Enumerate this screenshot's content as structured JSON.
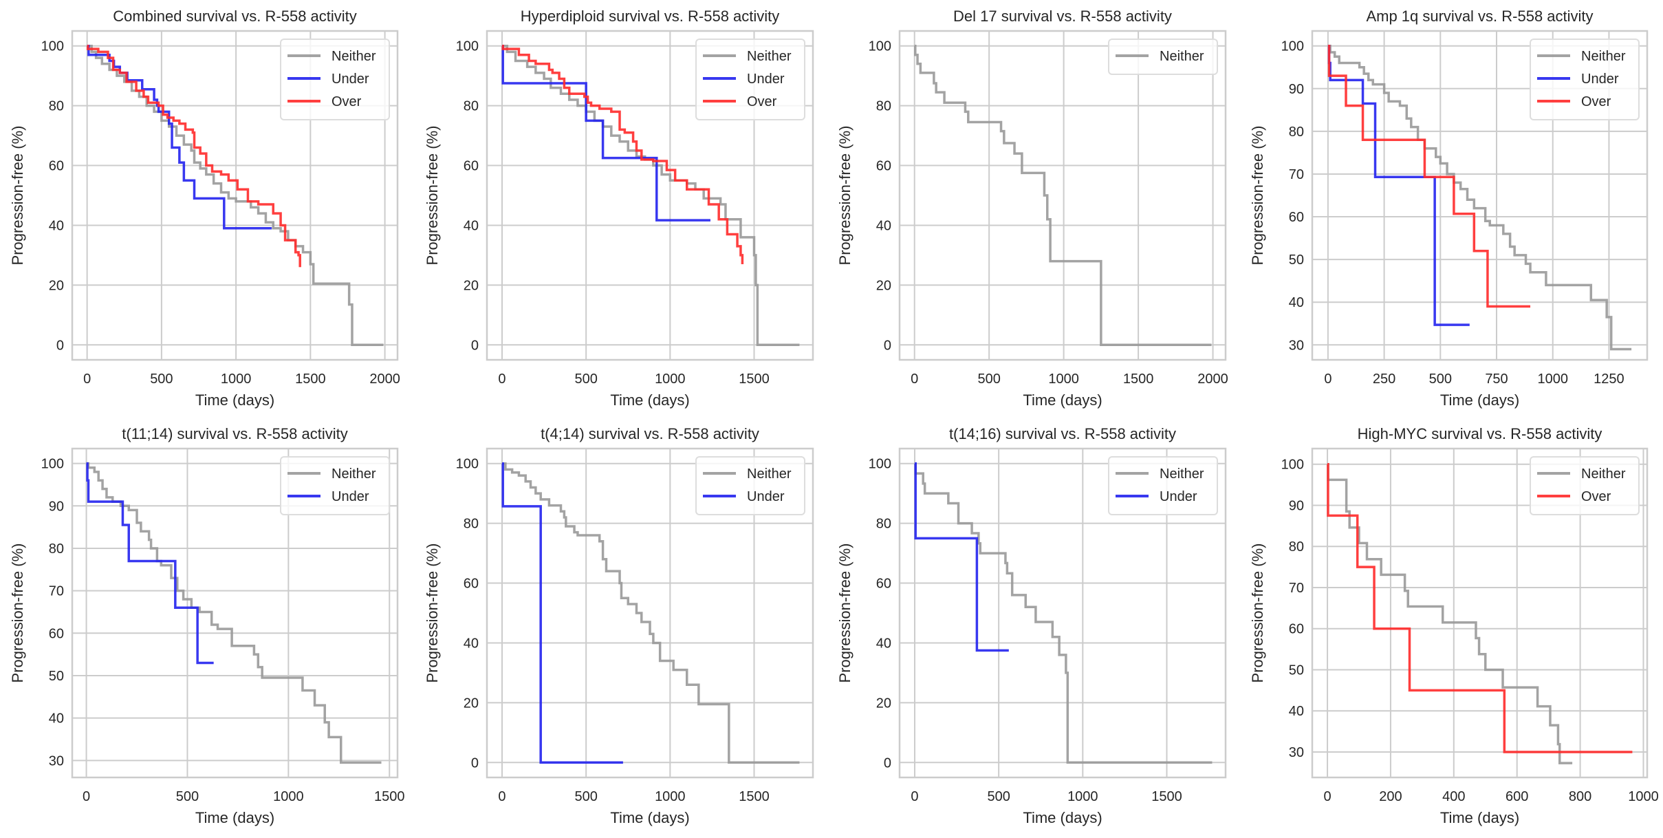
{
  "figure": {
    "suptitle": ""
  },
  "colors": {
    "Neither": "#999999",
    "Under": "#2222ee",
    "Over": "#ff2a2a",
    "grid": "#cccccc",
    "frame": "#cccccc"
  },
  "chart_data": [
    {
      "type": "line",
      "step": true,
      "title": "Combined survival vs. R-558 activity",
      "xlabel": "Time (days)",
      "ylabel": "Progression-free (%)",
      "xlim": [
        -100,
        2085
      ],
      "ylim": [
        -5,
        105
      ],
      "xticks": [
        0,
        500,
        1000,
        1500,
        2000
      ],
      "yticks": [
        0,
        20,
        40,
        60,
        80,
        100
      ],
      "grid": true,
      "legend": "top-right",
      "series": [
        {
          "name": "Neither",
          "x": [
            0,
            30,
            60,
            100,
            150,
            200,
            250,
            300,
            350,
            400,
            450,
            500,
            550,
            600,
            650,
            700,
            720,
            760,
            800,
            850,
            900,
            950,
            1000,
            1100,
            1150,
            1200,
            1250,
            1300,
            1350,
            1400,
            1450,
            1500,
            1520,
            1760,
            1780,
            1990
          ],
          "y": [
            100,
            98,
            96,
            94,
            92,
            90,
            88,
            85,
            83,
            80,
            78,
            75,
            73,
            70,
            67,
            65,
            61,
            59,
            57,
            54,
            51,
            49,
            48,
            46,
            44,
            41,
            39,
            38,
            35,
            33,
            31,
            27,
            20.5,
            13.5,
            0,
            0
          ]
        },
        {
          "name": "Under",
          "x": [
            0,
            10,
            150,
            180,
            220,
            270,
            370,
            450,
            470,
            480,
            550,
            570,
            620,
            650,
            720,
            800,
            920,
            1240
          ],
          "y": [
            100,
            97,
            95,
            93,
            91,
            88.5,
            85.5,
            82,
            80,
            78,
            74,
            66,
            61,
            55,
            49,
            49,
            39,
            39
          ]
        },
        {
          "name": "Over",
          "x": [
            0,
            5,
            75,
            140,
            175,
            220,
            265,
            330,
            380,
            410,
            480,
            510,
            540,
            580,
            620,
            660,
            710,
            720,
            760,
            800,
            840,
            900,
            950,
            1010,
            1080,
            1150,
            1250,
            1300,
            1330,
            1400,
            1420,
            1430
          ],
          "y": [
            100,
            99,
            98,
            96,
            92,
            91,
            88,
            85,
            83,
            81,
            80,
            77,
            76,
            75,
            74,
            72,
            71,
            66,
            64,
            60,
            58,
            57,
            55,
            52,
            48,
            47,
            44,
            40,
            35,
            31,
            30,
            26
          ]
        }
      ]
    },
    {
      "type": "line",
      "step": true,
      "title": "Hyperdiploid survival vs. R-558 activity",
      "xlabel": "Time (days)",
      "ylabel": "Progression-free (%)",
      "xlim": [
        -90,
        1850
      ],
      "ylim": [
        -5,
        105
      ],
      "xticks": [
        0,
        500,
        1000,
        1500
      ],
      "yticks": [
        0,
        20,
        40,
        60,
        80,
        100
      ],
      "grid": true,
      "legend": "top-right",
      "series": [
        {
          "name": "Neither",
          "x": [
            0,
            30,
            80,
            150,
            200,
            250,
            290,
            350,
            400,
            450,
            500,
            550,
            600,
            650,
            700,
            750,
            800,
            850,
            900,
            950,
            1000,
            1100,
            1150,
            1200,
            1300,
            1330,
            1420,
            1500,
            1510,
            1520,
            1770
          ],
          "y": [
            100,
            98,
            95,
            93,
            91,
            89,
            86,
            84,
            82,
            80,
            78,
            75,
            73,
            70,
            68,
            65,
            63,
            62,
            60,
            57,
            55,
            54,
            52,
            49,
            47,
            42,
            36,
            30,
            20,
            0,
            0
          ]
        },
        {
          "name": "Under",
          "x": [
            0,
            5,
            500,
            600,
            920,
            1240
          ],
          "y": [
            100,
            87.5,
            75,
            62.5,
            41.7,
            41.7
          ]
        },
        {
          "name": "Over",
          "x": [
            0,
            5,
            100,
            160,
            200,
            280,
            300,
            340,
            370,
            400,
            490,
            510,
            530,
            580,
            650,
            700,
            730,
            780,
            800,
            830,
            900,
            980,
            1030,
            1100,
            1230,
            1290,
            1340,
            1400,
            1420,
            1430
          ],
          "y": [
            100,
            99,
            97,
            95,
            94,
            92,
            91,
            89,
            86,
            84,
            83,
            81,
            80,
            79,
            78,
            72,
            71,
            68,
            65,
            62,
            61.5,
            58.5,
            55,
            52,
            47,
            42,
            37,
            33,
            30,
            27
          ]
        }
      ]
    },
    {
      "type": "line",
      "step": true,
      "title": "Del 17 survival vs. R-558 activity",
      "xlabel": "Time (days)",
      "ylabel": "Progression-free (%)",
      "xlim": [
        -100,
        2085
      ],
      "ylim": [
        -5,
        105
      ],
      "xticks": [
        0,
        500,
        1000,
        1500,
        2000
      ],
      "yticks": [
        0,
        20,
        40,
        60,
        80,
        100
      ],
      "grid": true,
      "legend": "top-right",
      "series": [
        {
          "name": "Neither",
          "x": [
            0,
            5,
            20,
            40,
            130,
            145,
            200,
            340,
            360,
            580,
            600,
            670,
            720,
            870,
            890,
            910,
            1250,
            1990
          ],
          "y": [
            100,
            97,
            94,
            91,
            87.5,
            84.5,
            81,
            78,
            74.5,
            71.5,
            67.5,
            64,
            57.5,
            50,
            42,
            28,
            0,
            0
          ]
        }
      ]
    },
    {
      "type": "line",
      "step": true,
      "title": "Amp 1q survival vs. R-558 activity",
      "xlabel": "Time (days)",
      "ylabel": "Progression-free (%)",
      "xlim": [
        -70,
        1420
      ],
      "ylim": [
        26.5,
        103.5
      ],
      "xticks": [
        0,
        250,
        500,
        750,
        1000,
        1250
      ],
      "yticks": [
        30,
        40,
        50,
        60,
        70,
        80,
        90,
        100
      ],
      "grid": true,
      "legend": "top-right",
      "series": [
        {
          "name": "Neither",
          "x": [
            0,
            10,
            30,
            50,
            140,
            160,
            180,
            200,
            250,
            270,
            320,
            350,
            370,
            400,
            430,
            480,
            500,
            530,
            560,
            590,
            620,
            650,
            700,
            720,
            780,
            810,
            830,
            880,
            900,
            970,
            1170,
            1240,
            1260,
            1350
          ],
          "y": [
            100,
            98.5,
            97.5,
            96,
            95,
            93.5,
            92,
            91,
            89,
            87,
            86,
            83,
            81,
            78,
            76,
            74,
            72.5,
            70,
            68,
            66.5,
            64,
            62,
            59,
            58,
            56,
            53,
            51,
            49,
            47,
            44,
            40.5,
            36.5,
            29,
            29
          ]
        },
        {
          "name": "Under",
          "x": [
            0,
            5,
            10,
            155,
            210,
            475,
            630
          ],
          "y": [
            100,
            96,
            92,
            86.5,
            69.3,
            34.7,
            34.7
          ]
        },
        {
          "name": "Over",
          "x": [
            0,
            5,
            80,
            155,
            430,
            560,
            650,
            710,
            900
          ],
          "y": [
            100,
            93,
            86,
            78,
            69.3,
            60.7,
            52,
            39,
            39
          ]
        }
      ]
    },
    {
      "type": "line",
      "step": true,
      "title": "t(11;14) survival vs. R-558 activity",
      "xlabel": "Time (days)",
      "ylabel": "Progression-free (%)",
      "xlim": [
        -70,
        1540
      ],
      "ylim": [
        26,
        103.5
      ],
      "xticks": [
        0,
        500,
        1000,
        1500
      ],
      "yticks": [
        30,
        40,
        50,
        60,
        70,
        80,
        90,
        100
      ],
      "grid": true,
      "legend": "top-right",
      "series": [
        {
          "name": "Neither",
          "x": [
            0,
            10,
            40,
            60,
            80,
            100,
            130,
            170,
            210,
            250,
            270,
            310,
            320,
            350,
            370,
            420,
            450,
            480,
            520,
            560,
            620,
            650,
            720,
            830,
            850,
            870,
            1070,
            1130,
            1180,
            1200,
            1260,
            1460
          ],
          "y": [
            100,
            99,
            98,
            96,
            94,
            92,
            91,
            90,
            89,
            86,
            84,
            82,
            80,
            77,
            76,
            73,
            70,
            68,
            66,
            65,
            62,
            61,
            57,
            55,
            52,
            49.5,
            46.5,
            43,
            39,
            35.5,
            29.5,
            29.5
          ]
        },
        {
          "name": "Under",
          "x": [
            0,
            5,
            10,
            180,
            210,
            440,
            550,
            630
          ],
          "y": [
            100,
            96,
            91,
            85.5,
            77,
            66,
            53,
            53
          ]
        }
      ]
    },
    {
      "type": "line",
      "step": true,
      "title": "t(4;14) survival vs. R-558 activity",
      "xlabel": "Time (days)",
      "ylabel": "Progression-free (%)",
      "xlim": [
        -90,
        1850
      ],
      "ylim": [
        -5,
        105
      ],
      "xticks": [
        0,
        500,
        1000,
        1500
      ],
      "yticks": [
        0,
        20,
        40,
        60,
        80,
        100
      ],
      "grid": true,
      "legend": "top-right",
      "series": [
        {
          "name": "Neither",
          "x": [
            0,
            20,
            60,
            100,
            140,
            170,
            200,
            230,
            280,
            350,
            370,
            380,
            430,
            450,
            580,
            600,
            620,
            630,
            700,
            710,
            750,
            800,
            830,
            880,
            900,
            940,
            1020,
            1100,
            1170,
            1350,
            1770
          ],
          "y": [
            100,
            98,
            97,
            96,
            94,
            92,
            90,
            88,
            86,
            84,
            82,
            79,
            77,
            76,
            74,
            68,
            64,
            64,
            60,
            55,
            53,
            50,
            47,
            43,
            40,
            34,
            31,
            26,
            19.5,
            0,
            0
          ]
        },
        {
          "name": "Under",
          "x": [
            0,
            5,
            230,
            720
          ],
          "y": [
            100,
            85.7,
            0,
            0
          ]
        }
      ]
    },
    {
      "type": "line",
      "step": true,
      "title": "t(14;16) survival vs. R-558 activity",
      "xlabel": "Time (days)",
      "ylabel": "Progression-free (%)",
      "xlim": [
        -90,
        1850
      ],
      "ylim": [
        -5,
        105
      ],
      "xticks": [
        0,
        500,
        1000,
        1500
      ],
      "yticks": [
        0,
        20,
        40,
        60,
        80,
        100
      ],
      "grid": true,
      "legend": "top-right",
      "series": [
        {
          "name": "Neither",
          "x": [
            0,
            5,
            50,
            60,
            200,
            260,
            340,
            380,
            390,
            540,
            550,
            580,
            660,
            720,
            820,
            860,
            900,
            910,
            1770
          ],
          "y": [
            100,
            96.7,
            93.3,
            90,
            86.7,
            80,
            76.7,
            73.3,
            70,
            66.7,
            63.3,
            56,
            52,
            47,
            42,
            36,
            30,
            0,
            0
          ]
        },
        {
          "name": "Under",
          "x": [
            0,
            5,
            370,
            560
          ],
          "y": [
            100,
            75,
            37.5,
            37.5
          ]
        }
      ]
    },
    {
      "type": "line",
      "step": true,
      "title": "High-MYC survival vs. R-558 activity",
      "xlabel": "Time (days)",
      "ylabel": "Progression-free (%)",
      "xlim": [
        -48,
        1012
      ],
      "ylim": [
        23.8,
        103.8
      ],
      "xticks": [
        0,
        200,
        400,
        600,
        800,
        1000
      ],
      "yticks": [
        30,
        40,
        50,
        60,
        70,
        80,
        90,
        100
      ],
      "grid": true,
      "legend": "top-right",
      "series": [
        {
          "name": "Neither",
          "x": [
            0,
            2,
            60,
            70,
            100,
            125,
            170,
            245,
            255,
            365,
            470,
            480,
            500,
            555,
            665,
            705,
            730,
            735,
            775
          ],
          "y": [
            100,
            96.2,
            88.5,
            84.6,
            80.8,
            76.9,
            73.1,
            69.2,
            65.4,
            61.5,
            57.7,
            53.8,
            50,
            45.7,
            41.1,
            36.5,
            31.9,
            27.3,
            27.3
          ]
        },
        {
          "name": "Over",
          "x": [
            0,
            2,
            95,
            148,
            260,
            560,
            965
          ],
          "y": [
            100,
            87.5,
            75,
            60,
            45,
            30,
            30
          ]
        }
      ]
    }
  ]
}
